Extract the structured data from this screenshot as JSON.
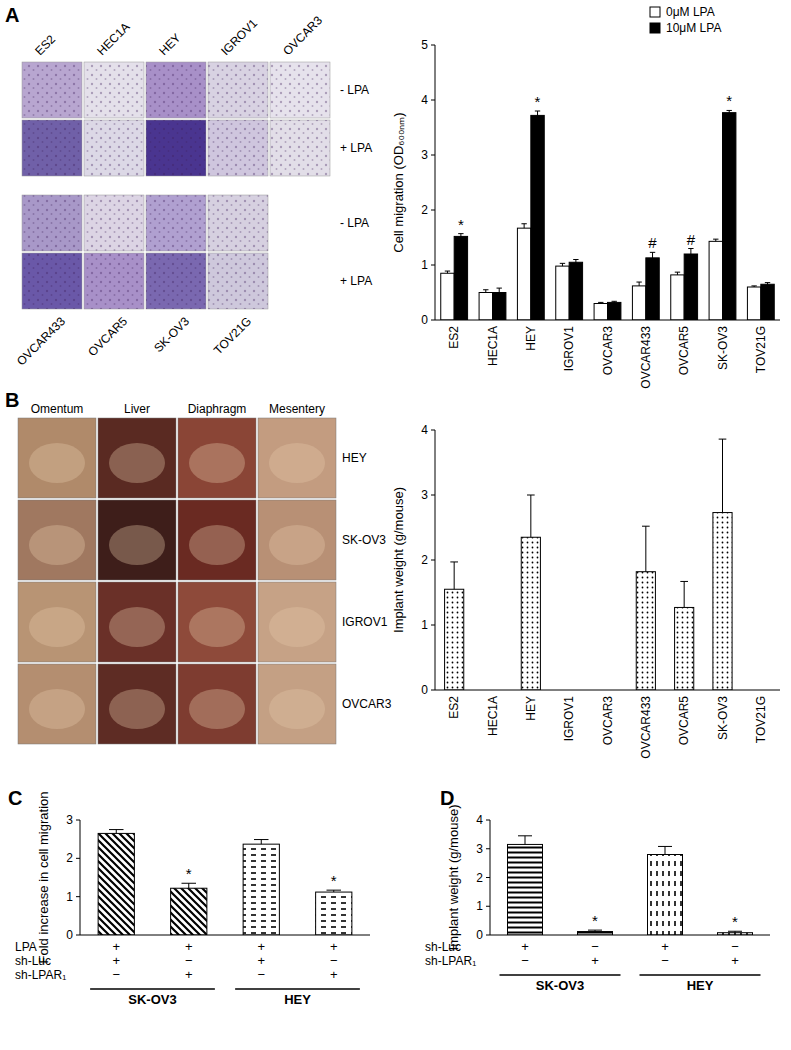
{
  "figure": {
    "panel_letters": [
      "A",
      "B",
      "C",
      "D"
    ],
    "migration_images": {
      "top_labels": [
        "ES2",
        "HEC1A",
        "HEY",
        "IGROV1",
        "OVCAR3"
      ],
      "bottom_labels": [
        "OVCAR433",
        "OVCAR5",
        "SK-OV3",
        "TOV21G"
      ],
      "row_labels": [
        "- LPA",
        "+ LPA"
      ]
    },
    "implant_images": {
      "column_labels": [
        "Omentum",
        "Liver",
        "Diaphragm",
        "Mesentery"
      ],
      "row_labels": [
        "HEY",
        "SK-OV3",
        "IGROV1",
        "OVCAR3"
      ]
    }
  },
  "chart_data": [
    {
      "type": "bar",
      "categories": [
        "ES2",
        "HEC1A",
        "HEY",
        "IGROV1",
        "OVCAR3",
        "OVCAR433",
        "OVCAR5",
        "SK-OV3",
        "TOV21G"
      ],
      "ylabel": "Cell migration (OD₆₀₀ₙₘ)",
      "ylim": [
        0,
        5
      ],
      "yticks": [
        0,
        1,
        2,
        3,
        4,
        5
      ],
      "legend": "upper right",
      "series": [
        {
          "name": "0μM LPA",
          "color": "#ffffff",
          "values": [
            0.85,
            0.5,
            1.67,
            0.98,
            0.3,
            0.62,
            0.82,
            1.43,
            0.6
          ],
          "errors": [
            0.04,
            0.05,
            0.08,
            0.05,
            0.02,
            0.07,
            0.05,
            0.04,
            0.02
          ]
        },
        {
          "name": "10μM LPA",
          "color": "#000000",
          "values": [
            1.52,
            0.5,
            3.72,
            1.05,
            0.32,
            1.13,
            1.2,
            3.77,
            0.65
          ],
          "errors": [
            0.05,
            0.08,
            0.08,
            0.05,
            0.02,
            0.1,
            0.1,
            0.04,
            0.03
          ],
          "annotations": [
            "*",
            null,
            "*",
            null,
            null,
            "#",
            "#",
            "*",
            null
          ]
        }
      ]
    },
    {
      "type": "bar",
      "categories": [
        "ES2",
        "HEC1A",
        "HEY",
        "IGROV1",
        "OVCAR3",
        "OVCAR433",
        "OVCAR5",
        "SK-OV3",
        "TOV21G"
      ],
      "ylabel": "Implant weight (g/mouse)",
      "ylim": [
        0,
        4
      ],
      "yticks": [
        0,
        1,
        2,
        3,
        4
      ],
      "series": [
        {
          "color": "#000000",
          "values": [
            1.55,
            0,
            2.35,
            0,
            0,
            1.82,
            1.27,
            2.73,
            0
          ],
          "errors": [
            0.42,
            null,
            0.65,
            null,
            null,
            0.7,
            0.4,
            1.13,
            null
          ]
        }
      ]
    },
    {
      "type": "bar",
      "categories": [
        null,
        null,
        null,
        null
      ],
      "ylabel": "Fold increase in cell migration",
      "ylim": [
        0,
        3
      ],
      "yticks": [
        0,
        1,
        2,
        3
      ],
      "series": [
        {
          "colors": [
            "#000000",
            "#000000",
            "#000000",
            "#000000"
          ],
          "values": [
            2.65,
            1.22,
            2.37,
            1.12
          ],
          "errors": [
            0.1,
            0.13,
            0.12,
            0.05
          ],
          "annotations": [
            null,
            "*",
            null,
            "*"
          ]
        }
      ],
      "conditions": [
        {
          "label": "LPA",
          "signs": [
            "+",
            "+",
            "+",
            "+"
          ]
        },
        {
          "label": "sh-Luc",
          "signs": [
            "+",
            "−",
            "+",
            "−"
          ]
        },
        {
          "label": "sh-LPAR₁",
          "signs": [
            "−",
            "+",
            "−",
            "+"
          ]
        }
      ],
      "groups": [
        "SK-OV3",
        "HEY"
      ]
    },
    {
      "type": "bar",
      "categories": [
        null,
        null,
        null,
        null
      ],
      "ylabel": "Implant weight (g/mouse)",
      "ylim": [
        0,
        4
      ],
      "yticks": [
        0,
        1,
        2,
        3,
        4
      ],
      "series": [
        {
          "colors": [
            "#000000",
            "#000000",
            "#000000",
            "#000000"
          ],
          "values": [
            3.15,
            0.12,
            2.8,
            0.08
          ],
          "errors": [
            0.3,
            0.05,
            0.28,
            0.05
          ],
          "annotations": [
            null,
            "*",
            null,
            "*"
          ]
        }
      ],
      "conditions": [
        {
          "label": "sh-Luc",
          "signs": [
            "+",
            "−",
            "+",
            "−"
          ]
        },
        {
          "label": "sh-LPAR₁",
          "signs": [
            "−",
            "+",
            "−",
            "+"
          ]
        }
      ],
      "groups": [
        "SK-OV3",
        "HEY"
      ]
    }
  ]
}
